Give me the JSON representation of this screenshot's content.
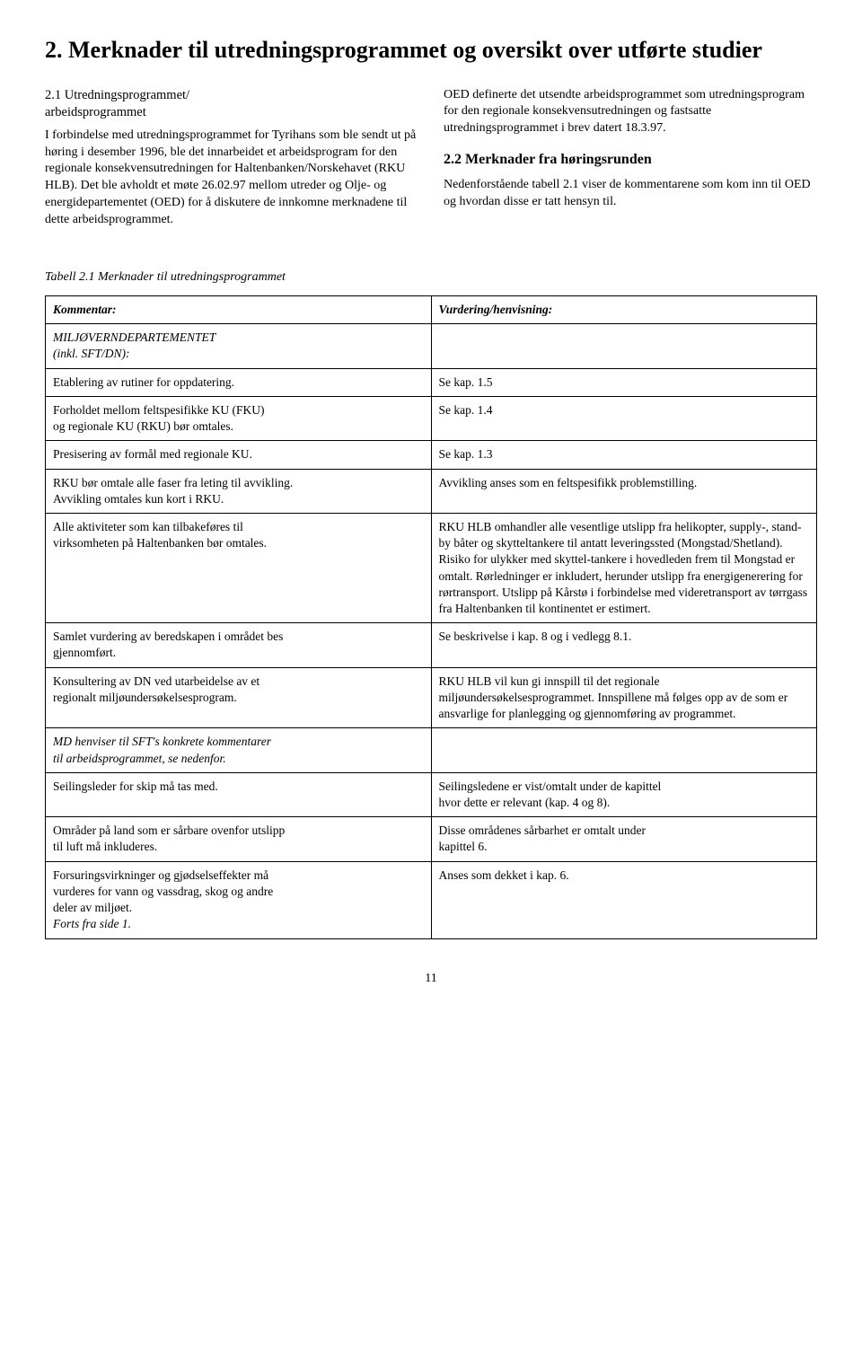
{
  "heading": "2.  Merknader til utredningsprogrammet og oversikt over utførte studier",
  "left": {
    "subhead": "2.1 Utredningsprogrammet/\n      arbeidsprogrammet",
    "p1": "I forbindelse med utredningsprogrammet for Tyrihans som ble sendt ut på høring i desember 1996, ble det innarbeidet et arbeidsprogram for den regionale konsekvensutredningen for Haltenbanken/Norskehavet (RKU HLB). Det ble avholdt et møte 26.02.97 mellom utreder og Olje- og energidepartementet (OED) for å diskutere de innkomne merknadene til dette arbeidsprogrammet."
  },
  "right": {
    "p1": "OED definerte det utsendte arbeidsprogrammet som utredningsprogram for den regionale konsekvensutredningen og fastsatte utredningsprogrammet i brev datert 18.3.97.",
    "subhead": "2.2 Merknader fra høringsrunden",
    "p2": "Nedenforstående tabell 2.1 viser de kommentarene som kom inn til OED og hvordan disse er tatt hensyn til."
  },
  "table_caption": "Tabell 2.1 Merknader til utredningsprogrammet",
  "table": {
    "headers": [
      "Kommentar:",
      "Vurdering/henvisning:"
    ],
    "rows": [
      {
        "c1_html": "<span class=\"italic\">MILJØVERNDEPARTEMENTET<br>(inkl. SFT/DN):</span>",
        "c2_html": ""
      },
      {
        "c1_html": "Etablering av rutiner for oppdatering.",
        "c2_html": "Se kap. 1.5"
      },
      {
        "c1_html": "Forholdet mellom feltspesifikke KU (FKU)<br>og regionale KU (RKU) bør omtales.",
        "c2_html": "Se kap. 1.4"
      },
      {
        "c1_html": "Presisering av formål med regionale KU.",
        "c2_html": "Se kap. 1.3"
      },
      {
        "c1_html": "RKU bør omtale alle faser fra leting til avvikling.<br>Avvikling omtales kun kort i RKU.",
        "c2_html": "Avvikling anses  som en feltspesifikk problemstilling."
      },
      {
        "c1_html": "Alle aktiviteter som kan tilbakeføres til<br>virksomheten på Haltenbanken bør omtales.",
        "c2_html": "RKU HLB omhandler alle vesentlige utslipp fra helikopter, supply-, stand-by båter og skytteltankere til antatt leveringssted (Mongstad/Shetland). Risiko for ulykker med skyttel-tankere i hovedleden frem til Mongstad er omtalt. Rørledninger er inkludert, herunder utslipp fra energigenerering for rørtransport. Utslipp på Kårstø i forbindelse med videretransport av tørrgass fra Haltenbanken til kontinentet er estimert."
      },
      {
        "c1_html": "Samlet vurdering av beredskapen i området bes<br>gjennomført.",
        "c2_html": "Se beskrivelse i kap. 8 og i vedlegg 8.1."
      },
      {
        "c1_html": "Konsultering av DN ved utarbeidelse av et<br>regionalt miljøundersøkelsesprogram.",
        "c2_html": "RKU HLB vil kun gi innspill til det regionale miljøundersøkelsesprogrammet. Innspillene må følges opp av de som er ansvarlige for planlegging og gjennomføring av programmet."
      },
      {
        "c1_html": "<span class=\"italic\">MD henviser til SFT's konkrete kommentarer<br>til arbeidsprogrammet, se nedenfor.</span>",
        "c2_html": ""
      },
      {
        "c1_html": "Seilingsleder for skip må tas med.",
        "c2_html": "Seilingsledene er vist/omtalt under de kapittel<br>hvor dette er relevant (kap. 4 og 8)."
      },
      {
        "c1_html": "Områder på land som er sårbare ovenfor utslipp<br>til luft må inkluderes.",
        "c2_html": "Disse områdenes sårbarhet er omtalt under<br>kapittel 6."
      },
      {
        "c1_html": "Forsuringsvirkninger og gjødselseffekter må<br>vurderes for vann og vassdrag, skog og andre<br>deler av miljøet.<br><span class=\"italic\">Forts fra side 1.</span>",
        "c2_html": "Anses som dekket i kap. 6."
      }
    ]
  },
  "page_number": "11"
}
